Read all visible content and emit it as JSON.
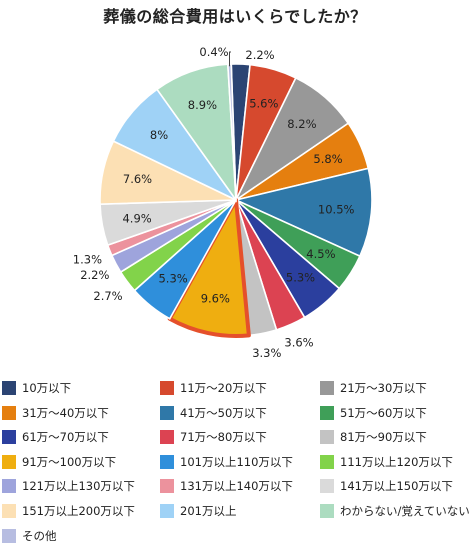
{
  "chart_data": {
    "type": "pie",
    "title": "葬儀の総合費用はいくらでしたか？",
    "legend_position": "bottom",
    "slices": [
      {
        "label": "10万以下",
        "value": 2.2,
        "value_label": "2.2%",
        "color": "#2b4473"
      },
      {
        "label": "11万〜20万以下",
        "value": 5.6,
        "value_label": "5.6%",
        "color": "#d6492e"
      },
      {
        "label": "21万〜30万以下",
        "value": 8.2,
        "value_label": "8.2%",
        "color": "#989898"
      },
      {
        "label": "31万〜40万以下",
        "value": 5.8,
        "value_label": "5.8%",
        "color": "#e57f0f"
      },
      {
        "label": "41万〜50万以下",
        "value": 10.5,
        "value_label": "10.5%",
        "color": "#2f78a8"
      },
      {
        "label": "51万〜60万以下",
        "value": 4.5,
        "value_label": "4.5%",
        "color": "#3f9f58"
      },
      {
        "label": "61万〜70万以下",
        "value": 5.3,
        "value_label": "5.3%",
        "color": "#2b3f9e"
      },
      {
        "label": "71万〜80万以下",
        "value": 3.6,
        "value_label": "3.6%",
        "color": "#dc4352"
      },
      {
        "label": "81万〜90万以下",
        "value": 3.3,
        "value_label": "3.3%",
        "color": "#c3c3c3"
      },
      {
        "label": "91万〜100万以下",
        "value": 9.6,
        "value_label": "9.6%",
        "color": "#efae10",
        "highlight": true,
        "highlight_color": "#e5502b"
      },
      {
        "label": "101万以上110万以下",
        "value": 5.3,
        "value_label": "5.3%",
        "color": "#2f8fdb"
      },
      {
        "label": "111万以上120万以下",
        "value": 2.7,
        "value_label": "2.7%",
        "color": "#82d34a"
      },
      {
        "label": "121万以上130万以下",
        "value": 2.2,
        "value_label": "2.2%",
        "color": "#9ea4dc"
      },
      {
        "label": "131万以上140万以下",
        "value": 1.3,
        "value_label": "1.3%",
        "color": "#ec929d"
      },
      {
        "label": "141万以上150万以下",
        "value": 4.9,
        "value_label": "4.9%",
        "color": "#dadada"
      },
      {
        "label": "151万以上200万以下",
        "value": 7.6,
        "value_label": "7.6%",
        "color": "#fce0b4"
      },
      {
        "label": "201万以上",
        "value": 8.0,
        "value_label": "8%",
        "color": "#9fd2f6"
      },
      {
        "label": "わからない/覚えていない",
        "value": 8.9,
        "value_label": "8.9%",
        "color": "#acdcc0"
      },
      {
        "label": "その他",
        "value": 0.4,
        "value_label": "0.4%",
        "color": "#b7bde1"
      }
    ]
  }
}
